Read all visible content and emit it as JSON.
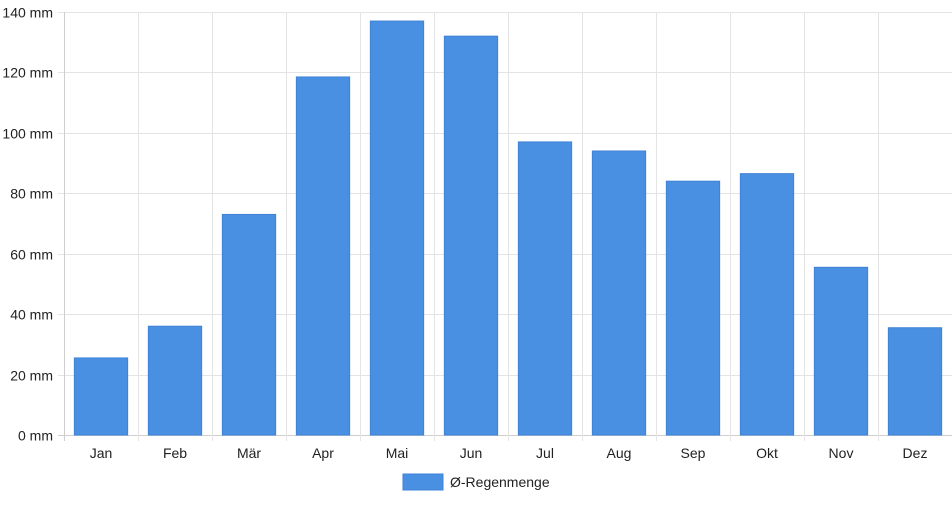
{
  "chart_data": {
    "type": "bar",
    "categories": [
      "Jan",
      "Feb",
      "Mär",
      "Apr",
      "Mai",
      "Jun",
      "Jul",
      "Aug",
      "Sep",
      "Okt",
      "Nov",
      "Dez"
    ],
    "series": [
      {
        "name": "Ø-Regenmenge",
        "values": [
          25.5,
          36,
          73,
          118.5,
          137,
          132,
          97,
          94,
          84,
          86.5,
          55.5,
          35.5
        ],
        "color": "#4a90e2"
      }
    ],
    "ylim": [
      0,
      140
    ],
    "yticks": [
      0,
      20,
      40,
      60,
      80,
      100,
      120,
      140
    ],
    "ytick_labels": [
      "0 mm",
      "20 mm",
      "40 mm",
      "60 mm",
      "80 mm",
      "100 mm",
      "120 mm",
      "140 mm"
    ],
    "grid": true,
    "legend_position": "bottom",
    "colors": {
      "grid": "#e4e4e4",
      "axis": "#cfcfcf",
      "text": "#222222"
    }
  }
}
